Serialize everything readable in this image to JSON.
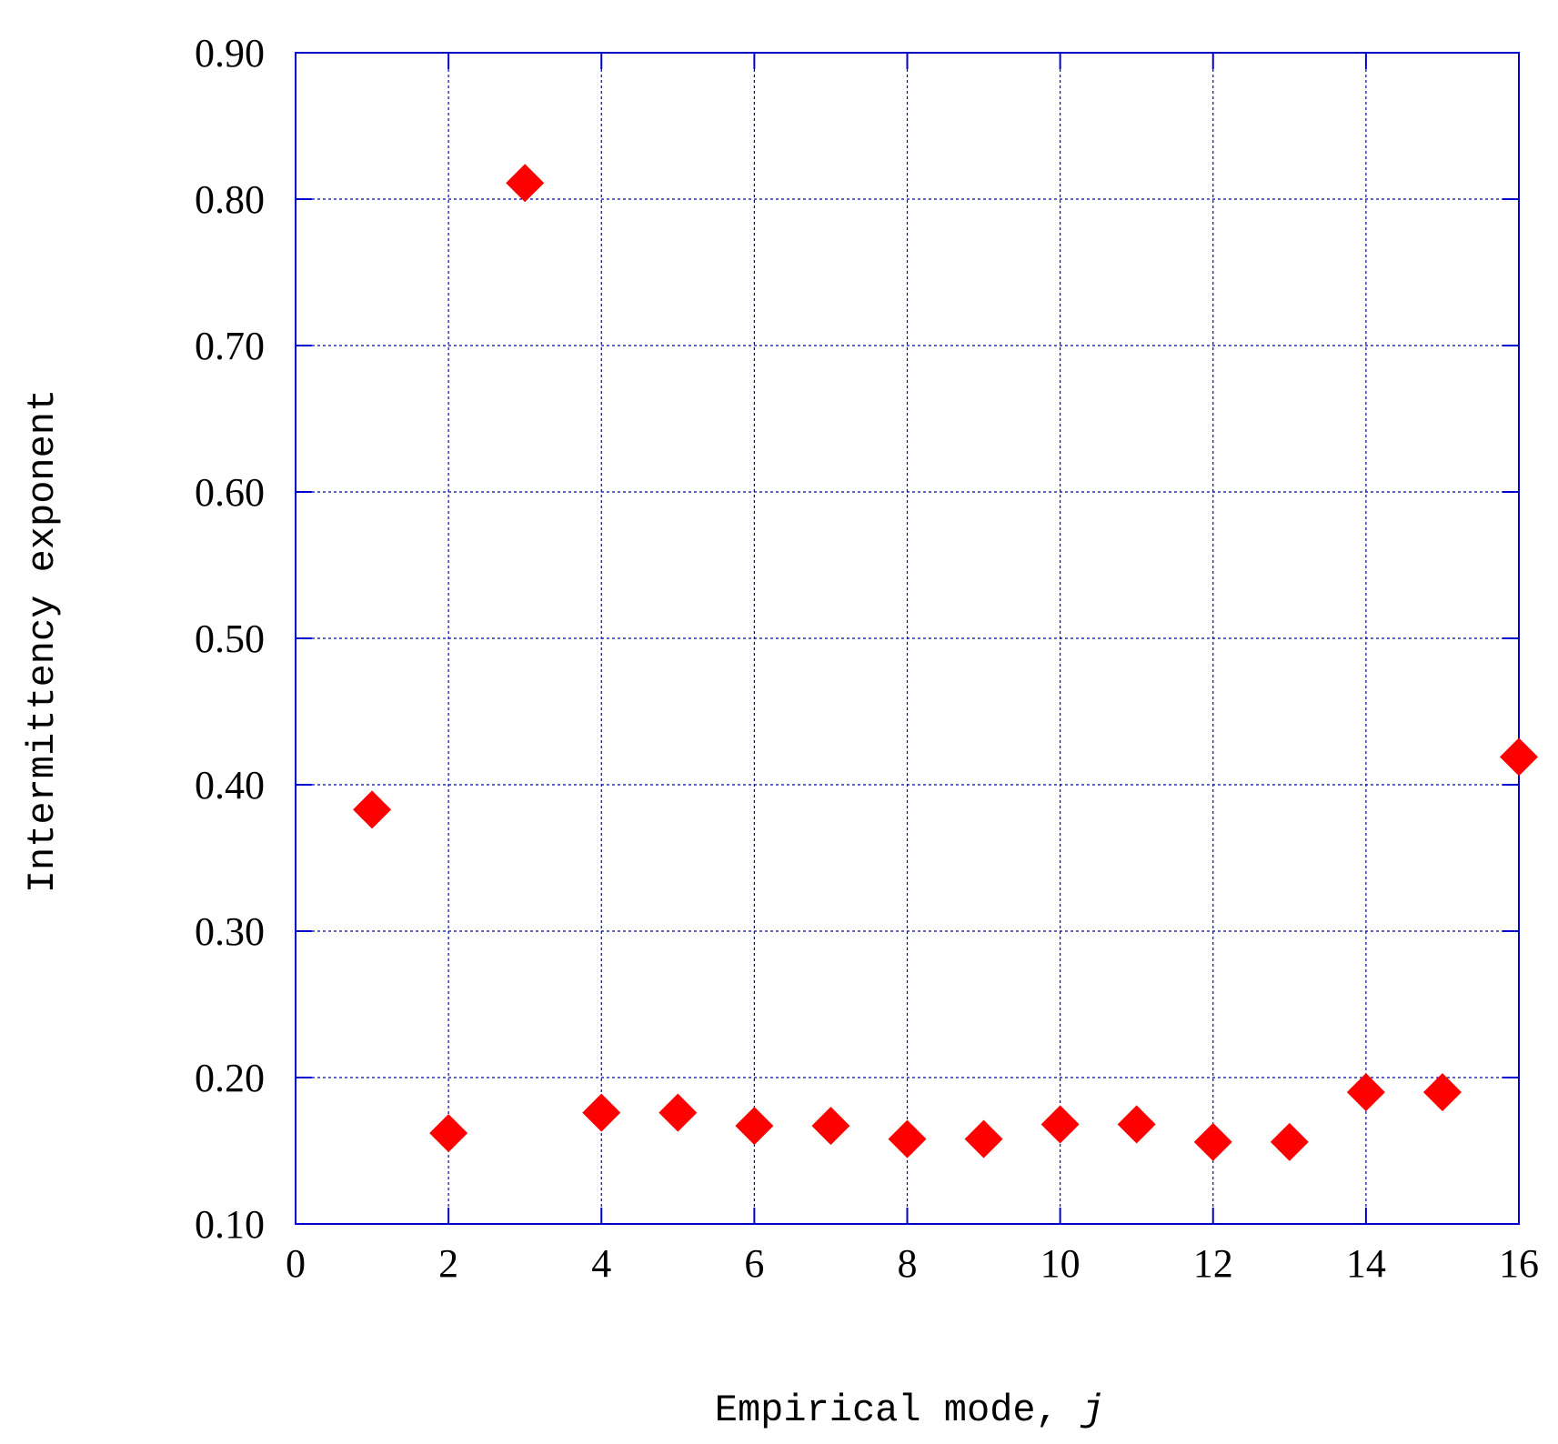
{
  "chart_data": {
    "type": "scatter",
    "xlabel": "Empirical mode, ",
    "xlabel_var": "j",
    "ylabel": "Intermittency exponent",
    "xlim": [
      0,
      16
    ],
    "ylim": [
      0.1,
      0.9
    ],
    "x_ticks": [
      "0",
      "2",
      "4",
      "6",
      "8",
      "10",
      "12",
      "14",
      "16"
    ],
    "y_ticks": [
      "0.10",
      "0.20",
      "0.30",
      "0.40",
      "0.50",
      "0.60",
      "0.70",
      "0.80",
      "0.90"
    ],
    "grid": true,
    "marker": "diamond",
    "colors": {
      "marker": "#ff0000",
      "axes": "#0000cc",
      "grid": "#0000cc"
    },
    "series": [
      {
        "x": [
          1,
          2,
          3,
          4,
          5,
          6,
          7,
          8,
          9,
          10,
          11,
          12,
          13,
          14,
          15,
          16
        ],
        "y": [
          0.383,
          0.162,
          0.811,
          0.176,
          0.176,
          0.167,
          0.167,
          0.158,
          0.158,
          0.168,
          0.168,
          0.156,
          0.156,
          0.19,
          0.19,
          0.419
        ]
      }
    ]
  }
}
